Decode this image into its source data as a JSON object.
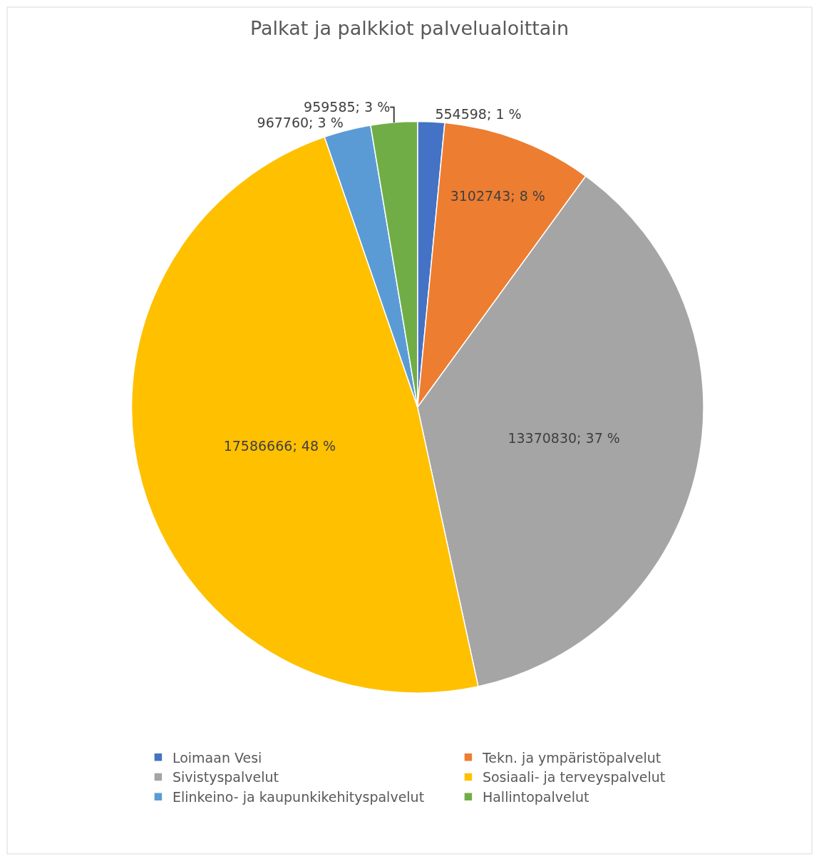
{
  "chart_data": {
    "type": "pie",
    "title": "Palkat ja palkkiot palvelualoittain",
    "categories": [
      "Loimaan Vesi",
      "Tekn. ja ympäristöpalvelut",
      "Sivistyspalvelut",
      "Sosiaali- ja terveyspalvelut",
      "Elinkeino- ja kaupunkikehityspalvelut",
      "Hallintopalvelut"
    ],
    "values": [
      554598,
      3102743,
      13370830,
      17586666,
      967760,
      959585
    ],
    "value_labels": [
      "554598; 1 %",
      "3102743; 8 %",
      "13370830; 37 %",
      "17586666; 48 %",
      "967760; 3 %",
      "959585; 3 %"
    ],
    "colors": [
      "#4472c4",
      "#ed7d31",
      "#a5a5a5",
      "#ffc000",
      "#5b9bd5",
      "#70ad47"
    ],
    "legend": "bottom"
  }
}
